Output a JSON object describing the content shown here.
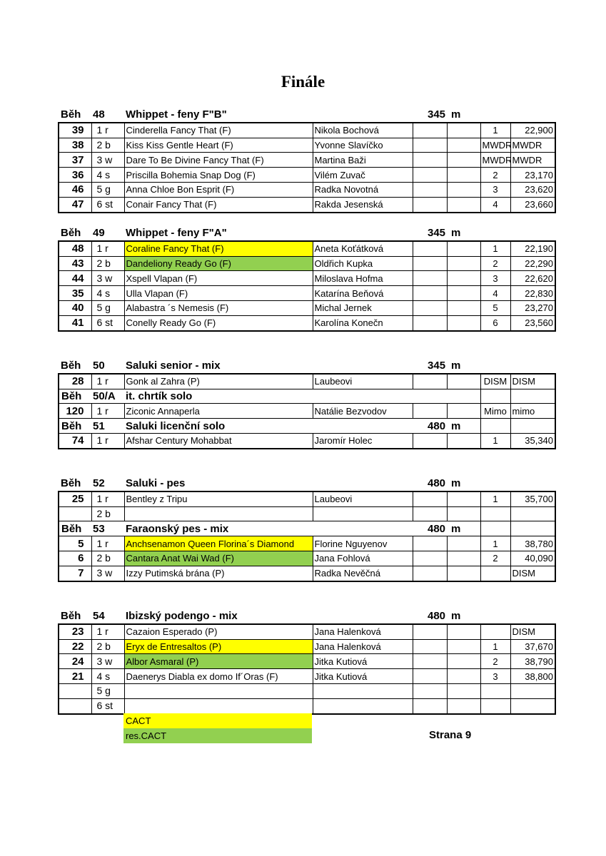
{
  "title": "Finále",
  "groups": [
    {
      "items": [
        {
          "heading": {
            "label": "Běh",
            "number": "48",
            "name": "Whippet - feny F\"B\"",
            "distance": "345",
            "unit": "m"
          }
        },
        {
          "no": "39",
          "box": "1 r",
          "dog": "Cinderella Fancy That (F)",
          "owner": "Nikola Bochová",
          "place": "1",
          "time": "22,900"
        },
        {
          "no": "38",
          "box": "2 b",
          "dog": "Kiss Kiss Gentle Heart (F)",
          "owner": "Yvonne Slavíčko",
          "place": "MWDR",
          "time": "MWDR"
        },
        {
          "no": "37",
          "box": "3 w",
          "dog": "Dare To Be Divine Fancy That (F)",
          "owner": "Martina Baži",
          "place": "MWDR",
          "time": "MWDR"
        },
        {
          "no": "36",
          "box": "4 s",
          "dog": "Priscilla Bohemia Snap Dog (F)",
          "owner": "Vilém Zuvač",
          "place": "2",
          "time": "23,170"
        },
        {
          "no": "46",
          "box": "5 g",
          "dog": "Anna Chloe Bon Esprit (F)",
          "owner": "Radka Novotná",
          "place": "3",
          "time": "23,620"
        },
        {
          "no": "47",
          "box": "6 st",
          "dog": "Conair Fancy That (F)",
          "owner": "Rakda Jesenská",
          "place": "4",
          "time": "23,660"
        }
      ]
    },
    {
      "items": [
        {
          "heading": {
            "label": "Běh",
            "number": "49",
            "name": "Whippet - feny F\"A\"",
            "distance": "345",
            "unit": "m"
          }
        },
        {
          "no": "48",
          "box": "1 r",
          "dog": "Coraline Fancy That (F)",
          "highlight": "#ffff00",
          "owner": "Aneta Koťátková",
          "place": "1",
          "time": "22,190"
        },
        {
          "no": "43",
          "box": "2 b",
          "dog": "Dandeliony Ready Go (F)",
          "highlight": "#92d050",
          "owner": "Oldřich Kupka",
          "place": "2",
          "time": "22,290"
        },
        {
          "no": "44",
          "box": "3 w",
          "dog": "Xspell Vlapan (F)",
          "owner": "Miloslava Hofma",
          "place": "3",
          "time": "22,620"
        },
        {
          "no": "35",
          "box": "4 s",
          "dog": "Ulla Vlapan (F)",
          "owner": "Katarína Beňová",
          "place": "4",
          "time": "22,830"
        },
        {
          "no": "40",
          "box": "5 g",
          "dog": "Alabastra ´s Nemesis (F)",
          "owner": "Michal Jernek",
          "place": "5",
          "time": "23,270"
        },
        {
          "no": "41",
          "box": "6 st",
          "dog": "Conelly Ready Go (F)",
          "owner": "Karolína Konečn",
          "place": "6",
          "time": "23,560"
        }
      ]
    },
    {
      "items": [
        {
          "heading": {
            "label": "Běh",
            "number": "50",
            "name": "Saluki senior - mix",
            "distance": "345",
            "unit": "m"
          }
        },
        {
          "no": "28",
          "box": "1 r",
          "dog": "Gonk al Zahra (P)",
          "owner": "Laubeovi",
          "place": "DISM",
          "time": "DISM"
        },
        {
          "heading": {
            "label": "Běh",
            "number": "50/A",
            "name": "it. chrtík solo"
          }
        },
        {
          "no": "120",
          "box": "1 r",
          "dog": "Ziconic Annaperla",
          "owner": "Natálie Bezvodov",
          "place": "Mimo",
          "time": "mimo"
        },
        {
          "heading": {
            "label": "Běh",
            "number": "51",
            "name": "Saluki licenční solo",
            "distance": "480",
            "unit": "m"
          }
        },
        {
          "no": "74",
          "box": "1 r",
          "dog": "Afshar Century Mohabbat",
          "owner": "Jaromír Holec",
          "place": "1",
          "time": "35,340"
        }
      ]
    },
    {
      "items": [
        {
          "heading": {
            "label": "Běh",
            "number": "52",
            "name": "Saluki - pes",
            "distance": "480",
            "unit": "m"
          }
        },
        {
          "no": "25",
          "box": "1 r",
          "dog": "Bentley z Tripu",
          "owner": "Laubeovi",
          "place": "1",
          "time": "35,700"
        },
        {
          "box": "2 b"
        },
        {
          "heading": {
            "label": "Běh",
            "number": "53",
            "name": "Faraonský pes - mix",
            "distance": "480",
            "unit": "m"
          }
        },
        {
          "no": "5",
          "box": "1 r",
          "dog": "Anchsenamon Queen Florina´s Diamond",
          "highlight": "#ffff00",
          "owner": "Florine Nguyenov",
          "place": "1",
          "time": "38,780"
        },
        {
          "no": "6",
          "box": "2 b",
          "dog": "Cantara Anat Wai Wad (F)",
          "highlight": "#92d050",
          "owner": "Jana Fohlová",
          "place": "2",
          "time": "40,090"
        },
        {
          "no": "7",
          "box": "3 w",
          "dog": "Izzy Putimská brána (P)",
          "owner": "Radka Nevěčná",
          "time": "DISM"
        }
      ]
    },
    {
      "items": [
        {
          "heading": {
            "label": "Běh",
            "number": "54",
            "name": "Ibizský podengo - mix",
            "distance": "480",
            "unit": "m"
          }
        },
        {
          "no": "23",
          "box": "1 r",
          "dog": "Cazaion Esperado (P)",
          "owner": "Jana Halenková",
          "time": "DISM"
        },
        {
          "no": "22",
          "box": "2 b",
          "dog": "Eryx de Entresaltos (P)",
          "highlight": "#ffff00",
          "owner": "Jana Halenková",
          "place": "1",
          "time": "37,670"
        },
        {
          "no": "24",
          "box": "3 w",
          "dog": "Albor Asmaral (P)",
          "highlight": "#92d050",
          "owner": "Jitka Kutiová",
          "place": "2",
          "time": "38,790"
        },
        {
          "no": "21",
          "box": "4 s",
          "dog": "Daenerys Diabla ex domo If´Oras (F)",
          "owner": "Jitka Kutiová",
          "place": "3",
          "time": "38,800"
        },
        {
          "box": "5 g"
        },
        {
          "box": "6 st"
        }
      ]
    }
  ],
  "legend": [
    {
      "label": "CACT",
      "color": "#ffff00"
    },
    {
      "label": "res.CACT",
      "color": "#92d050"
    }
  ],
  "footer": "Strana 9"
}
